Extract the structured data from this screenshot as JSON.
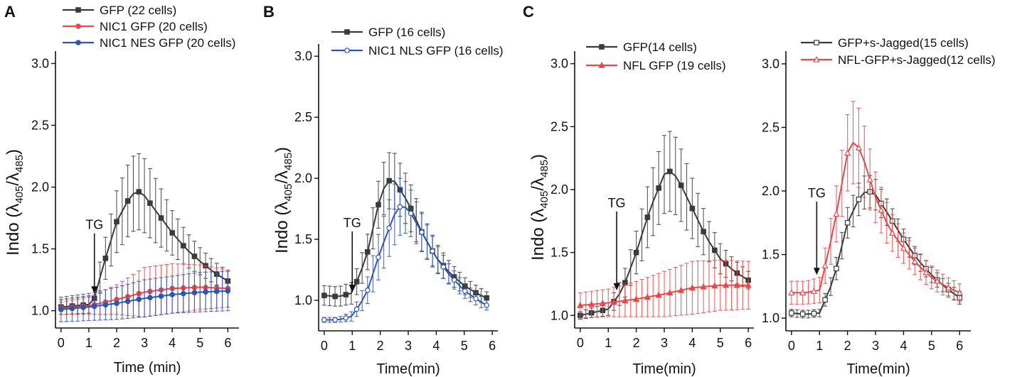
{
  "figure": {
    "panel_letters": [
      "A",
      "B",
      "C"
    ]
  },
  "chart_data": [
    {
      "type": "line",
      "panel": "A",
      "title": "",
      "xlabel": "Time (min)",
      "ylabel": {
        "prefix": "Indo (",
        "sym1": "λ",
        "sub1": "405",
        "sep": "/",
        "sym2": "λ",
        "sub2": "485",
        "suffix": ")"
      },
      "xlim": [
        -0.2,
        6.4
      ],
      "ylim": [
        0.86,
        3.1
      ],
      "xticks": [
        "0",
        "1",
        "2",
        "3",
        "4",
        "5",
        "6"
      ],
      "yticks": [
        "1.0",
        "1.5",
        "2.0",
        "2.5",
        "3.0"
      ],
      "annotation": {
        "text": "TG",
        "x": 1.2,
        "y_text": 1.66,
        "y_arrow_end": 1.14
      },
      "series": [
        {
          "name": "GFP (22 cells)",
          "color": "#3a3a3a",
          "marker": "square-filled",
          "times": [
            0,
            1,
            1.2,
            1.5,
            2,
            2.5,
            2.75,
            3,
            3.5,
            4,
            4.5,
            5,
            5.5,
            6
          ],
          "values": [
            1.03,
            1.05,
            1.1,
            1.35,
            1.72,
            1.93,
            1.97,
            1.93,
            1.78,
            1.63,
            1.5,
            1.4,
            1.31,
            1.24
          ],
          "errors": [
            0.06,
            0.07,
            0.08,
            0.15,
            0.25,
            0.3,
            0.31,
            0.3,
            0.25,
            0.18,
            0.14,
            0.11,
            0.09,
            0.08
          ]
        },
        {
          "name": "NIC1 GFP (20 cells)",
          "color": "#e8484a",
          "marker": "circle-filled",
          "times": [
            0,
            1,
            2,
            3,
            4,
            5,
            6
          ],
          "values": [
            1.02,
            1.04,
            1.09,
            1.15,
            1.18,
            1.19,
            1.18
          ],
          "errors": [
            0.05,
            0.07,
            0.12,
            0.2,
            0.2,
            0.18,
            0.15
          ]
        },
        {
          "name": "NIC1 NES GFP (20 cells)",
          "color": "#2d55b4",
          "marker": "circle-filled",
          "times": [
            0,
            1,
            2,
            3,
            4,
            5,
            6
          ],
          "values": [
            1.01,
            1.03,
            1.06,
            1.1,
            1.13,
            1.15,
            1.16
          ],
          "errors": [
            0.1,
            0.11,
            0.13,
            0.15,
            0.15,
            0.16,
            0.16
          ]
        }
      ]
    },
    {
      "type": "line",
      "panel": "B",
      "title": "",
      "xlabel": "Time(min)",
      "ylabel": {
        "prefix": "Indo (",
        "sym1": "λ",
        "sub1": "405",
        "sep": "/",
        "sym2": "λ",
        "sub2": "485",
        "suffix": ")"
      },
      "xlim": [
        -0.2,
        6.2
      ],
      "ylim": [
        0.75,
        3.1
      ],
      "xticks": [
        "0",
        "1",
        "2",
        "3",
        "4",
        "5",
        "6"
      ],
      "yticks": [
        "1.0",
        "1.5",
        "2.0",
        "2.5",
        "3.0"
      ],
      "annotation": {
        "text": "TG",
        "x": 1.0,
        "y_text": 1.6,
        "y_arrow_end": 1.07
      },
      "series": [
        {
          "name": "GFP (16 cells)",
          "color": "#3a3a3a",
          "marker": "square-filled",
          "times": [
            0,
            0.5,
            1,
            1.5,
            2,
            2.25,
            2.5,
            3,
            3.5,
            4,
            4.5,
            5,
            5.5,
            5.8
          ],
          "values": [
            1.04,
            1.03,
            1.06,
            1.35,
            1.85,
            1.98,
            1.98,
            1.8,
            1.55,
            1.35,
            1.22,
            1.12,
            1.05,
            1.02
          ],
          "errors": [
            0.08,
            0.08,
            0.09,
            0.14,
            0.2,
            0.23,
            0.23,
            0.2,
            0.16,
            0.12,
            0.09,
            0.07,
            0.06,
            0.05
          ]
        },
        {
          "name": "NIC1 NLS GFP (16 cells)",
          "color": "#2d55b4",
          "marker": "circle-open",
          "times": [
            0,
            0.5,
            1,
            1.5,
            2,
            2.5,
            2.75,
            3,
            3.5,
            4,
            4.5,
            5,
            5.5,
            5.8
          ],
          "values": [
            0.84,
            0.84,
            0.87,
            1.05,
            1.4,
            1.7,
            1.78,
            1.75,
            1.55,
            1.35,
            1.2,
            1.08,
            1.0,
            0.96
          ],
          "errors": [
            0.02,
            0.02,
            0.04,
            0.1,
            0.2,
            0.25,
            0.23,
            0.2,
            0.15,
            0.11,
            0.08,
            0.06,
            0.05,
            0.04
          ]
        }
      ]
    },
    {
      "type": "line",
      "panel": "C",
      "title": "",
      "xlabel": "Time(min)",
      "ylabel": {
        "prefix": "Indo (",
        "sym1": "λ",
        "sub1": "405",
        "sep": "/",
        "sym2": "λ",
        "sub2": "485",
        "suffix": ")"
      },
      "xlim": [
        -0.2,
        6.2
      ],
      "ylim": [
        0.9,
        3.1
      ],
      "xticks": [
        "0",
        "1",
        "2",
        "3",
        "4",
        "5",
        "6"
      ],
      "yticks": [
        "1.0",
        "1.5",
        "2.0",
        "2.5",
        "3.0"
      ],
      "annotation": {
        "text": "TG",
        "x": 1.3,
        "y_text": 1.86,
        "y_arrow_end": 1.2
      },
      "series": [
        {
          "name": "GFP(14 cells)",
          "color": "#3a3a3a",
          "marker": "square-filled",
          "times": [
            0,
            1,
            1.5,
            2,
            2.5,
            3,
            3.25,
            3.5,
            4,
            4.5,
            5,
            5.5,
            6
          ],
          "values": [
            1.0,
            1.05,
            1.2,
            1.5,
            1.85,
            2.12,
            2.15,
            2.08,
            1.85,
            1.62,
            1.45,
            1.35,
            1.28
          ],
          "errors": [
            0.03,
            0.05,
            0.1,
            0.17,
            0.26,
            0.31,
            0.32,
            0.3,
            0.24,
            0.17,
            0.12,
            0.09,
            0.07
          ]
        },
        {
          "name": "NFL GFP (19 cells)",
          "color": "#e8484a",
          "marker": "triangle-filled",
          "times": [
            0,
            1,
            2,
            3,
            4,
            5,
            6
          ],
          "values": [
            1.08,
            1.1,
            1.13,
            1.17,
            1.22,
            1.24,
            1.24
          ],
          "errors": [
            0.1,
            0.11,
            0.14,
            0.18,
            0.21,
            0.2,
            0.19
          ]
        }
      ]
    },
    {
      "type": "line",
      "panel": "C-right",
      "title": "",
      "xlabel": "Time(min)",
      "xlim": [
        -0.2,
        6.4
      ],
      "ylim": [
        0.9,
        3.1
      ],
      "xticks": [
        "0",
        "1",
        "2",
        "3",
        "4",
        "5",
        "6"
      ],
      "yticks": [
        "1.0",
        "1.5",
        "2.0",
        "2.5",
        "3.0"
      ],
      "annotation": {
        "text": "TG",
        "x": 0.9,
        "y_text": 1.95,
        "y_arrow_end": 1.34
      },
      "series": [
        {
          "name": "GFP+s-Jagged(15 cells)",
          "color": "#3a3a3a",
          "marker": "square-open",
          "times": [
            0,
            0.5,
            1,
            1.5,
            2,
            2.5,
            2.75,
            3,
            3.5,
            4,
            4.5,
            5,
            5.5,
            6
          ],
          "values": [
            1.04,
            1.03,
            1.04,
            1.3,
            1.75,
            1.98,
            2.0,
            1.97,
            1.8,
            1.62,
            1.46,
            1.34,
            1.24,
            1.16
          ],
          "errors": [
            0.03,
            0.03,
            0.03,
            0.08,
            0.12,
            0.13,
            0.13,
            0.12,
            0.1,
            0.08,
            0.07,
            0.06,
            0.05,
            0.05
          ]
        },
        {
          "name": "NFL-GFP+s-Jagged(12 cells)",
          "color": "#e8484a",
          "marker": "triangle-open",
          "times": [
            0,
            0.5,
            1,
            1.5,
            2,
            2.25,
            2.5,
            3,
            3.5,
            4,
            4.5,
            5,
            5.5,
            6
          ],
          "values": [
            1.2,
            1.2,
            1.22,
            1.7,
            2.3,
            2.4,
            2.3,
            1.95,
            1.7,
            1.55,
            1.42,
            1.32,
            1.25,
            1.2
          ],
          "errors": [
            0.09,
            0.09,
            0.1,
            0.2,
            0.3,
            0.33,
            0.3,
            0.2,
            0.15,
            0.12,
            0.1,
            0.09,
            0.08,
            0.07
          ]
        }
      ]
    }
  ]
}
